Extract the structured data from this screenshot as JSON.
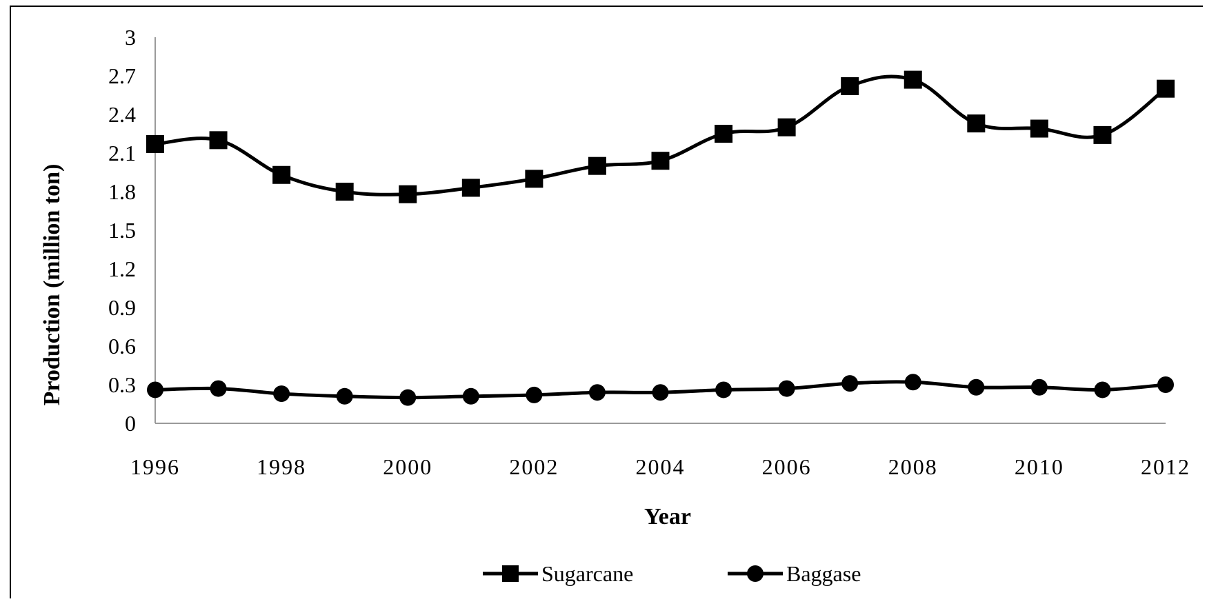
{
  "chart_data": {
    "type": "line",
    "title": "",
    "xlabel": "Year",
    "ylabel": "Production (million ton)",
    "x": [
      1996,
      1997,
      1998,
      1999,
      2000,
      2001,
      2002,
      2003,
      2004,
      2005,
      2006,
      2007,
      2008,
      2009,
      2010,
      2011,
      2012
    ],
    "x_tick_labels": [
      "1996",
      "1998",
      "2000",
      "2002",
      "2004",
      "2006",
      "2008",
      "2010",
      "2012"
    ],
    "y_tick_labels": [
      "0",
      "0.3",
      "0.6",
      "0.9",
      "1.2",
      "1.5",
      "1.8",
      "2.1",
      "2.4",
      "2.7",
      "3"
    ],
    "ylim": [
      0,
      3
    ],
    "grid": false,
    "legend_position": "bottom",
    "series": [
      {
        "name": "Sugarcane",
        "marker": "square",
        "color": "#000000",
        "values": [
          2.17,
          2.2,
          1.93,
          1.8,
          1.78,
          1.83,
          1.9,
          2.0,
          2.04,
          2.25,
          2.3,
          2.62,
          2.67,
          2.33,
          2.29,
          2.24,
          2.6
        ]
      },
      {
        "name": "Baggase",
        "marker": "circle",
        "color": "#000000",
        "values": [
          0.26,
          0.27,
          0.23,
          0.21,
          0.2,
          0.21,
          0.22,
          0.24,
          0.24,
          0.26,
          0.27,
          0.31,
          0.32,
          0.28,
          0.28,
          0.26,
          0.3
        ]
      }
    ]
  }
}
